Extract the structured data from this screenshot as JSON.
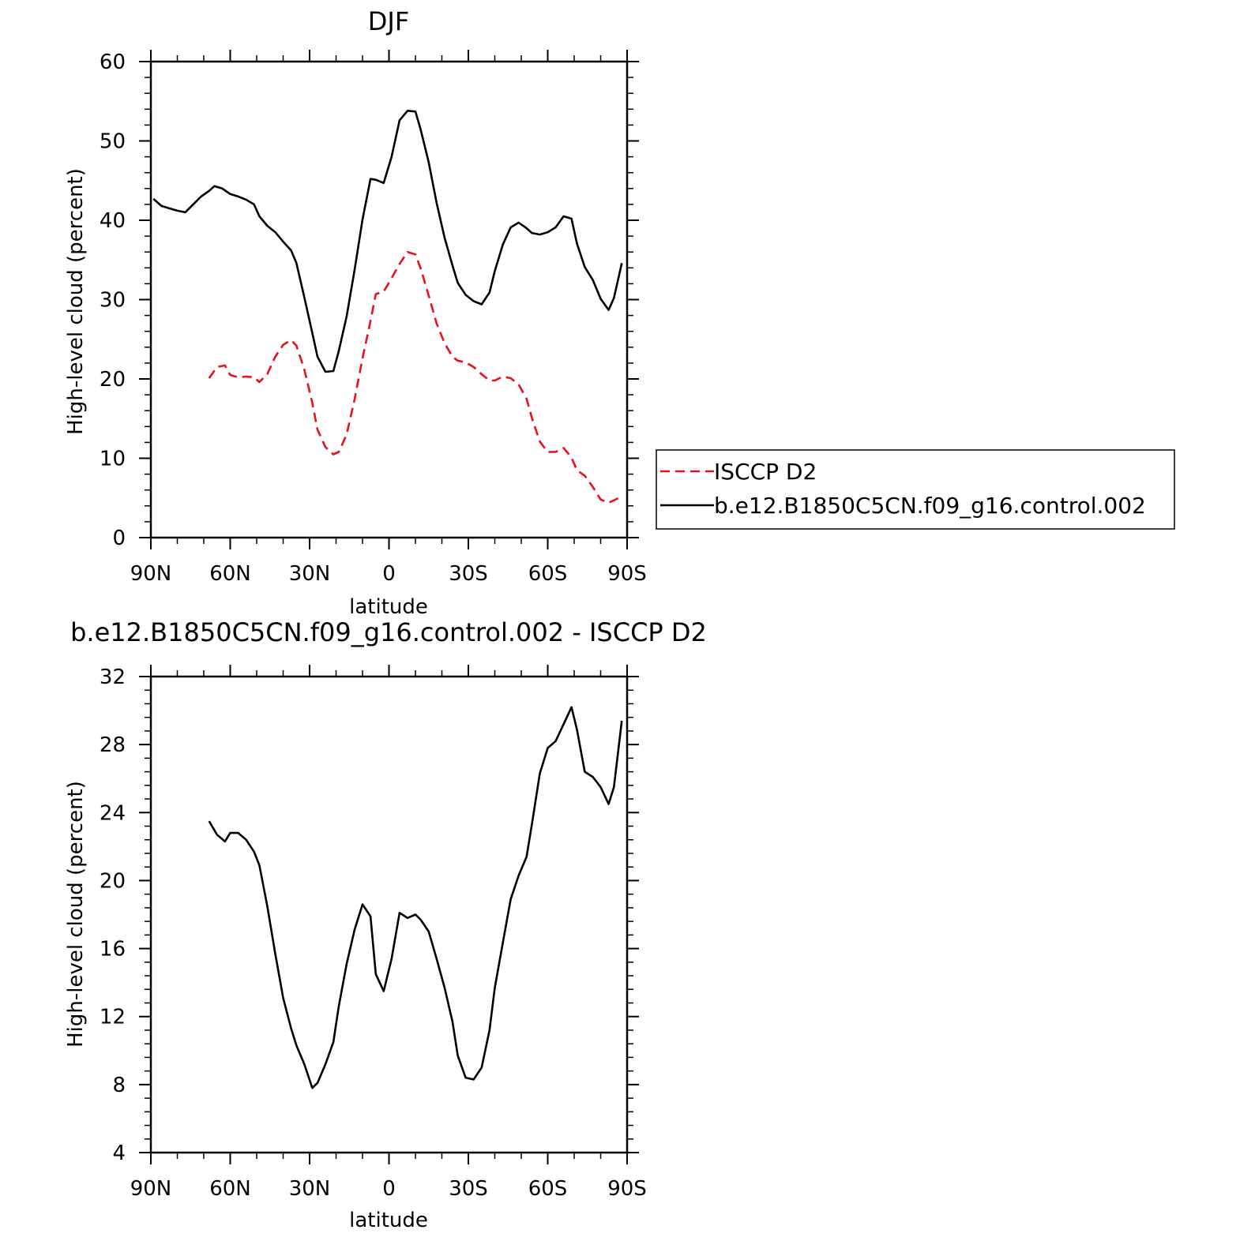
{
  "chart_data": [
    {
      "type": "line",
      "title": "DJF",
      "xlabel": "latitude",
      "ylabel": "High-level cloud (percent)",
      "xlim": [
        90,
        -90
      ],
      "ylim": [
        0,
        60
      ],
      "x_ticks": [
        90,
        60,
        30,
        0,
        -30,
        -60,
        -90
      ],
      "x_tick_labels": [
        "90N",
        "60N",
        "30N",
        "0",
        "30S",
        "60S",
        "90S"
      ],
      "y_ticks": [
        0,
        10,
        20,
        30,
        40,
        50,
        60
      ],
      "y_tick_labels": [
        "0",
        "10",
        "20",
        "30",
        "40",
        "50",
        "60"
      ],
      "legend_position": "right",
      "series": [
        {
          "name": "ISCCP D2",
          "color": "#e8111b",
          "dash": "dashed",
          "x": [
            68,
            65,
            62,
            60,
            57,
            54,
            51,
            49,
            46,
            43,
            40,
            37,
            35,
            32,
            29,
            27,
            24,
            21,
            19,
            16,
            13,
            10,
            7,
            5,
            2,
            -1,
            -4,
            -7,
            -10,
            -12,
            -15,
            -18,
            -21,
            -24,
            -26,
            -29,
            -32,
            -35,
            -38,
            -40,
            -43,
            -46,
            -49,
            -52,
            -54,
            -57,
            -60,
            -63,
            -66,
            -69,
            -71,
            -74,
            -77,
            -80,
            -83,
            -85,
            -88
          ],
          "y": [
            20.1,
            21.5,
            21.7,
            20.5,
            20.2,
            20.3,
            20.2,
            19.6,
            20.6,
            22.8,
            24.3,
            24.9,
            24.2,
            21.2,
            17.0,
            13.6,
            11.4,
            10.5,
            10.8,
            13.0,
            17.4,
            22.6,
            27.3,
            30.7,
            31.0,
            32.7,
            34.5,
            36.0,
            35.7,
            33.9,
            30.5,
            27.0,
            24.5,
            22.8,
            22.3,
            22.1,
            21.5,
            20.6,
            19.8,
            19.8,
            20.3,
            20.1,
            19.3,
            17.5,
            15.1,
            12.1,
            10.8,
            10.8,
            11.3,
            10.1,
            8.5,
            7.8,
            6.4,
            4.8,
            4.4,
            4.7,
            5.2
          ]
        },
        {
          "name": "b.e12.B1850C5CN.f09_g16.control.002",
          "color": "#000000",
          "dash": "solid",
          "x": [
            89,
            86,
            83,
            80,
            77,
            74,
            71,
            68,
            66,
            63,
            60,
            57,
            54,
            51,
            49,
            46,
            43,
            40,
            37,
            35,
            32,
            29,
            27,
            24,
            21,
            19,
            16,
            13,
            10,
            7,
            5,
            2,
            -1,
            -4,
            -7,
            -10,
            -12,
            -15,
            -18,
            -21,
            -24,
            -26,
            -29,
            -32,
            -35,
            -38,
            -40,
            -43,
            -46,
            -49,
            -52,
            -54,
            -57,
            -60,
            -63,
            -66,
            -69,
            -71,
            -74,
            -77,
            -80,
            -83,
            -85,
            -88
          ],
          "y": [
            42.7,
            41.8,
            41.5,
            41.2,
            41.0,
            42.0,
            43.0,
            43.7,
            44.3,
            44.0,
            43.3,
            43.0,
            42.6,
            42.0,
            40.5,
            39.3,
            38.5,
            37.3,
            36.2,
            34.6,
            30.3,
            25.8,
            22.8,
            20.9,
            21.0,
            23.5,
            27.9,
            33.7,
            40.1,
            45.2,
            45.1,
            44.7,
            48.0,
            52.6,
            53.8,
            53.7,
            51.4,
            47.3,
            42.2,
            37.8,
            34.3,
            32.1,
            30.6,
            29.8,
            29.4,
            30.9,
            33.6,
            36.9,
            39.1,
            39.7,
            39.0,
            38.4,
            38.2,
            38.5,
            39.1,
            40.5,
            40.2,
            37.1,
            34.1,
            32.5,
            30.1,
            28.7,
            30.2,
            34.6
          ]
        }
      ]
    },
    {
      "type": "line",
      "title": "b.e12.B1850C5CN.f09_g16.control.002 - ISCCP D2",
      "xlabel": "latitude",
      "ylabel": "High-level cloud (percent)",
      "xlim": [
        90,
        -90
      ],
      "ylim": [
        4,
        32
      ],
      "x_ticks": [
        90,
        60,
        30,
        0,
        -30,
        -60,
        -90
      ],
      "x_tick_labels": [
        "90N",
        "60N",
        "30N",
        "0",
        "30S",
        "60S",
        "90S"
      ],
      "y_ticks": [
        4,
        8,
        12,
        16,
        20,
        24,
        28,
        32
      ],
      "y_tick_labels": [
        "4",
        "8",
        "12",
        "16",
        "20",
        "24",
        "28",
        "32"
      ],
      "series": [
        {
          "color": "#000000",
          "dash": "solid",
          "x": [
            68,
            65,
            62,
            60,
            57,
            54,
            51,
            49,
            46,
            43,
            40,
            37,
            35,
            32,
            29,
            27,
            24,
            21,
            19,
            16,
            13,
            10,
            7,
            5,
            2,
            -1,
            -4,
            -7,
            -10,
            -12,
            -15,
            -18,
            -21,
            -24,
            -26,
            -29,
            -32,
            -35,
            -38,
            -40,
            -43,
            -46,
            -49,
            -52,
            -54,
            -57,
            -60,
            -63,
            -66,
            -69,
            -71,
            -74,
            -77,
            -80,
            -83,
            -85,
            -88
          ],
          "y": [
            23.5,
            22.7,
            22.3,
            22.8,
            22.8,
            22.4,
            21.7,
            20.9,
            18.5,
            15.7,
            13.1,
            11.3,
            10.3,
            9.2,
            7.8,
            8.1,
            9.2,
            10.5,
            12.6,
            15.1,
            17.1,
            18.6,
            17.9,
            14.5,
            13.5,
            15.4,
            18.1,
            17.8,
            18.0,
            17.7,
            17.0,
            15.4,
            13.7,
            11.7,
            9.7,
            8.4,
            8.3,
            9.0,
            11.2,
            13.7,
            16.3,
            18.9,
            20.3,
            21.4,
            23.3,
            26.3,
            27.8,
            28.2,
            29.2,
            30.2,
            28.9,
            26.4,
            26.1,
            25.5,
            24.5,
            25.5,
            29.4
          ]
        }
      ]
    }
  ]
}
